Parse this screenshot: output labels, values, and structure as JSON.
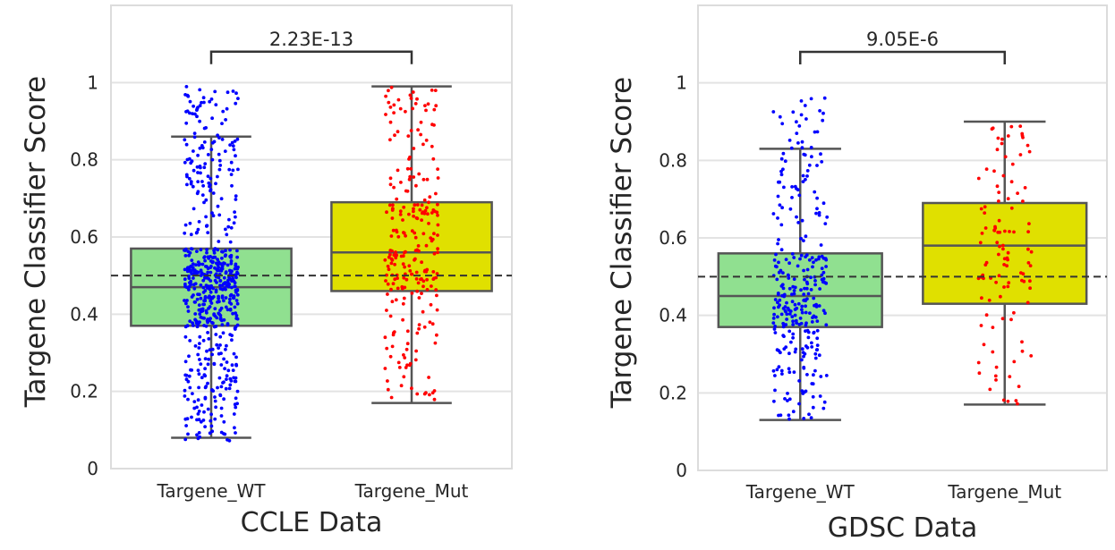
{
  "chart_data": [
    {
      "type": "box",
      "xlabel": "CCLE Data",
      "ylabel": "Targene Classifier Score",
      "ylim": [
        0,
        1.2
      ],
      "yticks": [
        0,
        0.2,
        0.4,
        0.6,
        0.8,
        1
      ],
      "ytick_labels": [
        "0",
        "0.2",
        "0.4",
        "0.6",
        "0.8",
        "1"
      ],
      "grid": true,
      "threshold_line": 0.5,
      "categories": [
        "Targene_WT",
        "Targene_Mut"
      ],
      "boxes": [
        {
          "category": "Targene_WT",
          "whisker_low": 0.08,
          "q1": 0.37,
          "median": 0.47,
          "q3": 0.57,
          "whisker_high": 0.86,
          "box_color": "#90e090",
          "point_color": "#0000ff",
          "point_count": 600,
          "point_min": 0.07,
          "point_max": 0.99
        },
        {
          "category": "Targene_Mut",
          "whisker_low": 0.17,
          "q1": 0.46,
          "median": 0.56,
          "q3": 0.69,
          "whisker_high": 0.99,
          "box_color": "#e0e000",
          "point_color": "#ff0000",
          "point_count": 250,
          "point_min": 0.17,
          "point_max": 0.99
        }
      ],
      "significance": {
        "label": "2.23E-13",
        "y": 1.08
      }
    },
    {
      "type": "box",
      "xlabel": "GDSC Data",
      "ylabel": "Targene Classifier Score",
      "ylim": [
        0,
        1.2
      ],
      "yticks": [
        0,
        0.2,
        0.4,
        0.6,
        0.8,
        1
      ],
      "ytick_labels": [
        "0",
        "0.2",
        "0.4",
        "0.6",
        "0.8",
        "1"
      ],
      "grid": true,
      "threshold_line": 0.5,
      "categories": [
        "Targene_WT",
        "Targene_Mut"
      ],
      "boxes": [
        {
          "category": "Targene_WT",
          "whisker_low": 0.13,
          "q1": 0.37,
          "median": 0.45,
          "q3": 0.56,
          "whisker_high": 0.83,
          "box_color": "#90e090",
          "point_color": "#0000ff",
          "point_count": 300,
          "point_min": 0.13,
          "point_max": 0.97
        },
        {
          "category": "Targene_Mut",
          "whisker_low": 0.17,
          "q1": 0.43,
          "median": 0.58,
          "q3": 0.69,
          "whisker_high": 0.9,
          "box_color": "#e0e000",
          "point_color": "#ff0000",
          "point_count": 110,
          "point_min": 0.17,
          "point_max": 0.9
        }
      ],
      "significance": {
        "label": "9.05E-6",
        "y": 1.08
      }
    }
  ]
}
